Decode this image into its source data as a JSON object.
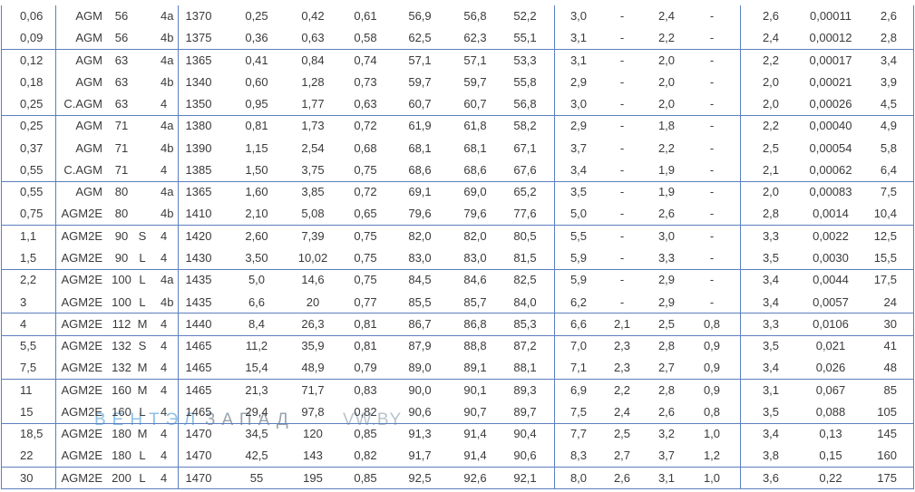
{
  "table": {
    "groups": [
      [
        [
          "0,06",
          "AGM",
          "56",
          null,
          "4a",
          "1370",
          "0,25",
          "0,42",
          "0,61",
          "56,9",
          "56,8",
          "52,2",
          "3,0",
          "-",
          "2,4",
          "-",
          "2,6",
          "0,00011",
          "2,6"
        ],
        [
          "0,09",
          "AGM",
          "56",
          null,
          "4b",
          "1375",
          "0,36",
          "0,63",
          "0,58",
          "62,5",
          "62,3",
          "55,1",
          "3,1",
          "-",
          "2,2",
          "-",
          "2,4",
          "0,00012",
          "2,8"
        ]
      ],
      [
        [
          "0,12",
          "AGM",
          "63",
          null,
          "4a",
          "1365",
          "0,41",
          "0,84",
          "0,74",
          "57,1",
          "57,1",
          "53,3",
          "3,1",
          "-",
          "2,0",
          "-",
          "2,2",
          "0,00017",
          "3,4"
        ],
        [
          "0,18",
          "AGM",
          "63",
          null,
          "4b",
          "1340",
          "0,60",
          "1,28",
          "0,73",
          "59,7",
          "59,7",
          "55,8",
          "2,9",
          "-",
          "2,0",
          "-",
          "2,0",
          "0,00021",
          "3,9"
        ],
        [
          "0,25",
          "C.AGM",
          "63",
          null,
          "4",
          "1350",
          "0,95",
          "1,77",
          "0,63",
          "60,7",
          "60,7",
          "56,8",
          "3,0",
          "-",
          "2,0",
          "-",
          "2,0",
          "0,00026",
          "4,5"
        ]
      ],
      [
        [
          "0,25",
          "AGM",
          "71",
          null,
          "4a",
          "1380",
          "0,81",
          "1,73",
          "0,72",
          "61,9",
          "61,8",
          "58,2",
          "2,9",
          "-",
          "1,8",
          "-",
          "2,2",
          "0,00040",
          "4,9"
        ],
        [
          "0,37",
          "AGM",
          "71",
          null,
          "4b",
          "1390",
          "1,15",
          "2,54",
          "0,68",
          "68,1",
          "68,1",
          "67,1",
          "3,7",
          "-",
          "2,2",
          "-",
          "2,5",
          "0,00054",
          "5,8"
        ],
        [
          "0,55",
          "C.AGM",
          "71",
          null,
          "4",
          "1385",
          "1,50",
          "3,75",
          "0,75",
          "68,6",
          "68,6",
          "67,6",
          "3,4",
          "-",
          "1,9",
          "-",
          "2,1",
          "0,00062",
          "6,4"
        ]
      ],
      [
        [
          "0,55",
          "AGM",
          "80",
          null,
          "4a",
          "1365",
          "1,60",
          "3,85",
          "0,72",
          "69,1",
          "69,0",
          "65,2",
          "3,5",
          "-",
          "1,9",
          "-",
          "2,0",
          "0,00083",
          "7,5"
        ],
        [
          "0,75",
          "AGM2E",
          "80",
          null,
          "4b",
          "1410",
          "2,10",
          "5,08",
          "0,65",
          "79,6",
          "79,6",
          "77,6",
          "5,0",
          "-",
          "2,6",
          "-",
          "2,8",
          "0,0014",
          "10,4"
        ]
      ],
      [
        [
          "1,1",
          "AGM2E",
          "90",
          "S",
          "4",
          "1420",
          "2,60",
          "7,39",
          "0,75",
          "82,0",
          "82,0",
          "80,5",
          "5,5",
          "-",
          "3,0",
          "-",
          "3,3",
          "0,0022",
          "12,5"
        ],
        [
          "1,5",
          "AGM2E",
          "90",
          "L",
          "4",
          "1430",
          "3,50",
          "10,02",
          "0,75",
          "83,0",
          "83,0",
          "81,5",
          "5,9",
          "-",
          "3,3",
          "-",
          "3,5",
          "0,0030",
          "15,5"
        ]
      ],
      [
        [
          "2,2",
          "AGM2E",
          "100",
          "L",
          "4a",
          "1435",
          "5,0",
          "14,6",
          "0,75",
          "84,5",
          "84,6",
          "82,5",
          "5,9",
          "-",
          "2,9",
          "-",
          "3,4",
          "0,0044",
          "17,5"
        ],
        [
          "3",
          "AGM2E",
          "100",
          "L",
          "4b",
          "1435",
          "6,6",
          "20",
          "0,77",
          "85,5",
          "85,7",
          "84,0",
          "6,2",
          "-",
          "2,9",
          "-",
          "3,4",
          "0,0057",
          "24"
        ]
      ],
      [
        [
          "4",
          "AGM2E",
          "112",
          "M",
          "4",
          "1440",
          "8,4",
          "26,3",
          "0,81",
          "86,7",
          "86,8",
          "85,3",
          "6,6",
          "2,1",
          "2,5",
          "0,8",
          "3,3",
          "0,0106",
          "30"
        ]
      ],
      [
        [
          "5,5",
          "AGM2E",
          "132",
          "S",
          "4",
          "1465",
          "11,2",
          "35,9",
          "0,81",
          "87,9",
          "88,8",
          "87,2",
          "7,0",
          "2,3",
          "2,8",
          "0,9",
          "3,5",
          "0,021",
          "41"
        ],
        [
          "7,5",
          "AGM2E",
          "132",
          "M",
          "4",
          "1465",
          "15,4",
          "48,9",
          "0,79",
          "89,0",
          "89,1",
          "88,1",
          "7,1",
          "2,3",
          "2,7",
          "0,9",
          "3,4",
          "0,026",
          "48"
        ]
      ],
      [
        [
          "11",
          "AGM2E",
          "160",
          "M",
          "4",
          "1465",
          "21,3",
          "71,7",
          "0,83",
          "90,0",
          "90,1",
          "89,3",
          "6,9",
          "2,2",
          "2,8",
          "0,9",
          "3,1",
          "0,067",
          "85"
        ],
        [
          "15",
          "AGM2E",
          "160",
          "L",
          "4",
          "1465",
          "29,4",
          "97,8",
          "0,82",
          "90,6",
          "90,7",
          "89,7",
          "7,5",
          "2,4",
          "2,6",
          "0,8",
          "3,5",
          "0,088",
          "105"
        ]
      ],
      [
        [
          "18,5",
          "AGM2E",
          "180",
          "M",
          "4",
          "1470",
          "34,5",
          "120",
          "0,85",
          "91,3",
          "91,4",
          "90,4",
          "7,7",
          "2,5",
          "3,2",
          "1,0",
          "3,4",
          "0,13",
          "145"
        ],
        [
          "22",
          "AGM2E",
          "180",
          "L",
          "4",
          "1470",
          "42,5",
          "143",
          "0,82",
          "91,7",
          "91,4",
          "90,6",
          "8,3",
          "2,7",
          "3,7",
          "1,2",
          "3,8",
          "0,15",
          "160"
        ]
      ],
      [
        [
          "30",
          "AGM2E",
          "200",
          "L",
          "4",
          "1470",
          "55",
          "195",
          "0,85",
          "92,5",
          "92,6",
          "92,1",
          "8,0",
          "2,6",
          "3,1",
          "1,0",
          "3,6",
          "0,22",
          "175"
        ]
      ]
    ]
  },
  "watermark": {
    "brand_a": "ВЕНТЭЛ",
    "brand_b": "ЗАПАД",
    "site": "VW.BY"
  }
}
